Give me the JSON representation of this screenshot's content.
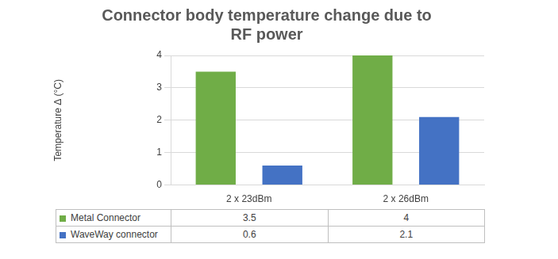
{
  "chart_data": {
    "type": "bar",
    "title": "Connector body temperature change due to RF power",
    "y_label": "Temperature Δ (°C)",
    "categories": [
      "2 x 23dBm",
      "2 x 26dBm"
    ],
    "series": [
      {
        "name": "Metal Connector",
        "color": "#70ad47",
        "values": [
          3.5,
          4
        ]
      },
      {
        "name": "WaveWay connector",
        "color": "#4472c4",
        "values": [
          0.6,
          2.1
        ]
      }
    ],
    "ylim": [
      0,
      4
    ],
    "yticks": [
      0,
      1,
      2,
      3,
      4
    ],
    "grid": true
  }
}
